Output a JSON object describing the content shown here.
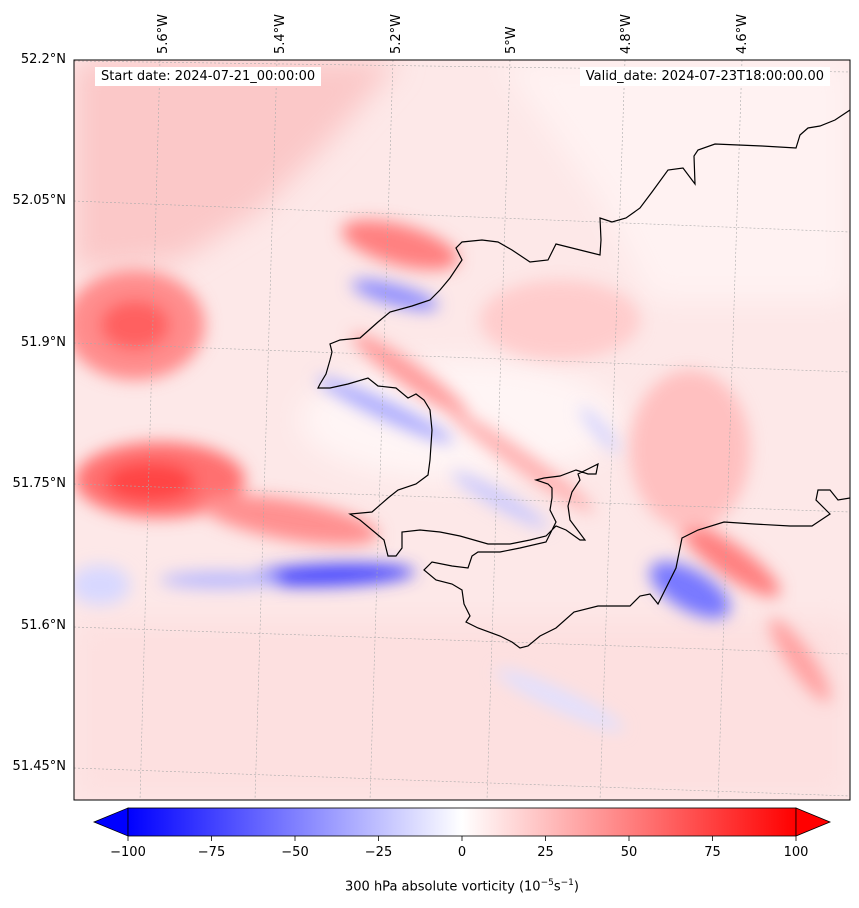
{
  "map": {
    "start_date": "Start date: 2024-07-21_00:00:00",
    "valid_date": "Valid_date: 2024-07-23T18:00:00.00",
    "lon_labels": [
      "5.6°W",
      "5.4°W",
      "5.2°W",
      "5°W",
      "4.8°W",
      "4.6°W"
    ],
    "lat_labels": [
      "52.2°N",
      "52.05°N",
      "51.9°N",
      "51.75°N",
      "51.6°N",
      "51.45°N"
    ],
    "colors": {
      "positive": "#ff0000",
      "negative": "#0000ff",
      "coast": "#000000"
    }
  },
  "colorbar": {
    "ticks": [
      "−100",
      "−75",
      "−50",
      "−25",
      "0",
      "25",
      "50",
      "75",
      "100"
    ],
    "min": -100,
    "max": 100,
    "label": "300 hPa absolute vorticity (10",
    "label_exp": "−5",
    "label_mid": "s",
    "label_exp2": "−1",
    "label_end": ")"
  }
}
